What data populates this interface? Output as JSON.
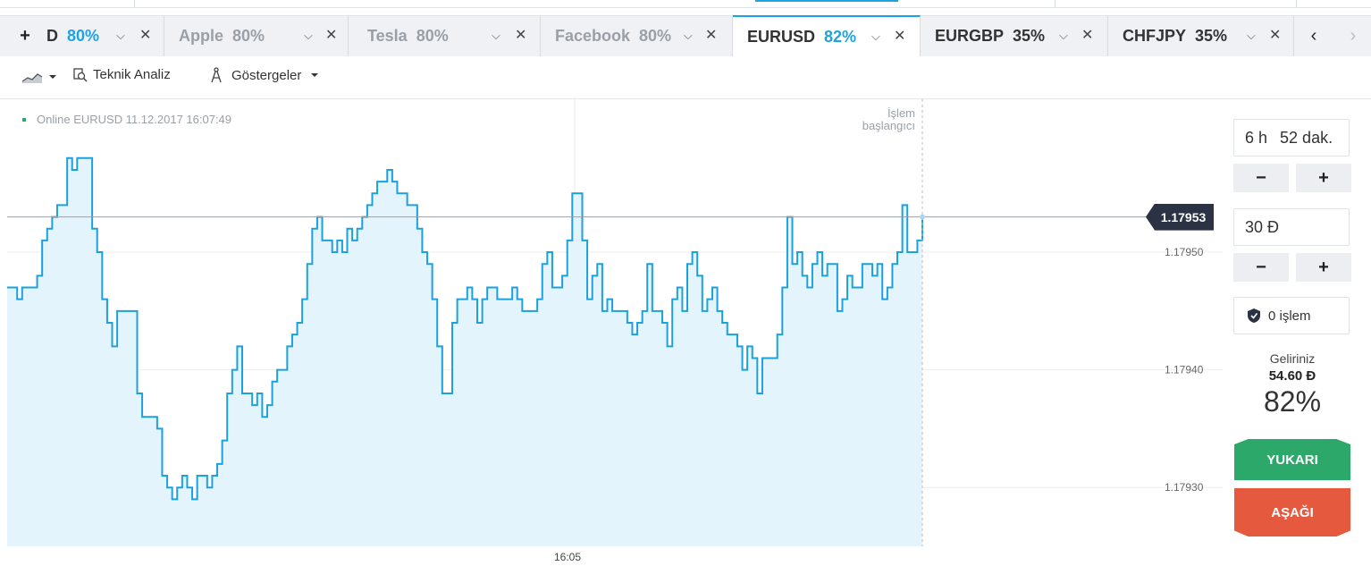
{
  "tabs": [
    {
      "name": "D",
      "pct": "80%"
    },
    {
      "name": "Apple",
      "pct": "80%"
    },
    {
      "name": "Tesla",
      "pct": "80%"
    },
    {
      "name": "Facebook",
      "pct": "80%"
    },
    {
      "name": "EURUSD",
      "pct": "82%"
    },
    {
      "name": "EURGBP",
      "pct": "35%"
    },
    {
      "name": "CHFJPY",
      "pct": "35%"
    }
  ],
  "toolbar": {
    "technical_label": "Teknik Analiz",
    "indicators_label": "Göstergeler"
  },
  "chart": {
    "online_label": "Online EURUSD 11.12.2017 16:07:49",
    "start_label_line1": "İşlem",
    "start_label_line2": "başlangıcı",
    "current_price": "1.17953",
    "x_tick": "16:05"
  },
  "chart_data": {
    "type": "area",
    "ylim": [
      1.17925,
      1.17963
    ],
    "y_ticks": [
      "1.17950",
      "1.17940",
      "1.17930"
    ],
    "y_tick_values": [
      1.1795,
      1.1794,
      1.1793
    ],
    "x_ticks": [
      "16:05"
    ],
    "current_value": 1.17953,
    "values": [
      1.17947,
      1.17947,
      1.17946,
      1.17947,
      1.17947,
      1.17947,
      1.17948,
      1.17951,
      1.17952,
      1.17953,
      1.17954,
      1.17954,
      1.17958,
      1.17957,
      1.17958,
      1.17958,
      1.17958,
      1.17952,
      1.1795,
      1.17946,
      1.17944,
      1.17942,
      1.17945,
      1.17945,
      1.17945,
      1.17945,
      1.17938,
      1.17936,
      1.17936,
      1.17936,
      1.17935,
      1.17931,
      1.1793,
      1.17929,
      1.1793,
      1.17931,
      1.1793,
      1.17929,
      1.17931,
      1.17931,
      1.1793,
      1.17931,
      1.17932,
      1.17934,
      1.17938,
      1.1794,
      1.17942,
      1.17938,
      1.17938,
      1.17937,
      1.17938,
      1.17936,
      1.17937,
      1.17939,
      1.1794,
      1.1794,
      1.17942,
      1.17943,
      1.17944,
      1.17946,
      1.17949,
      1.17952,
      1.17953,
      1.17951,
      1.17951,
      1.1795,
      1.17951,
      1.1795,
      1.17952,
      1.17951,
      1.17952,
      1.17953,
      1.17954,
      1.17955,
      1.17956,
      1.17956,
      1.17957,
      1.17956,
      1.17955,
      1.17955,
      1.17954,
      1.17954,
      1.17952,
      1.1795,
      1.17949,
      1.17946,
      1.17942,
      1.17938,
      1.17938,
      1.17944,
      1.17946,
      1.17946,
      1.17947,
      1.17946,
      1.17944,
      1.17946,
      1.17947,
      1.17947,
      1.17946,
      1.17946,
      1.17946,
      1.17947,
      1.17946,
      1.17945,
      1.17945,
      1.17945,
      1.17946,
      1.17949,
      1.1795,
      1.17947,
      1.17947,
      1.17948,
      1.17951,
      1.17955,
      1.17955,
      1.17951,
      1.17946,
      1.17948,
      1.17949,
      1.17945,
      1.17946,
      1.17945,
      1.17945,
      1.17945,
      1.17944,
      1.17943,
      1.17944,
      1.17945,
      1.17949,
      1.17945,
      1.17945,
      1.17944,
      1.17942,
      1.17946,
      1.17947,
      1.17945,
      1.17949,
      1.1795,
      1.17948,
      1.17945,
      1.17946,
      1.17947,
      1.17945,
      1.17944,
      1.17943,
      1.17943,
      1.17942,
      1.1794,
      1.17942,
      1.17941,
      1.17938,
      1.17941,
      1.17941,
      1.17941,
      1.17943,
      1.17947,
      1.17953,
      1.17949,
      1.1795,
      1.17948,
      1.17947,
      1.17949,
      1.1795,
      1.17948,
      1.17949,
      1.17949,
      1.17945,
      1.17946,
      1.17948,
      1.17947,
      1.17947,
      1.17949,
      1.17949,
      1.17948,
      1.17949,
      1.17946,
      1.17947,
      1.17949,
      1.1795,
      1.17954,
      1.1795,
      1.1795,
      1.17951,
      1.17953
    ]
  },
  "panel": {
    "duration_hours": "6 h",
    "duration_minutes": "52 dak.",
    "amount": "30 Ð",
    "minus": "−",
    "plus": "+",
    "trades": "0 işlem",
    "income_label": "Geliriniz",
    "income_value": "54.60 Ð",
    "payout": "82%",
    "up_label": "YUKARI",
    "down_label": "AŞAĞI"
  }
}
